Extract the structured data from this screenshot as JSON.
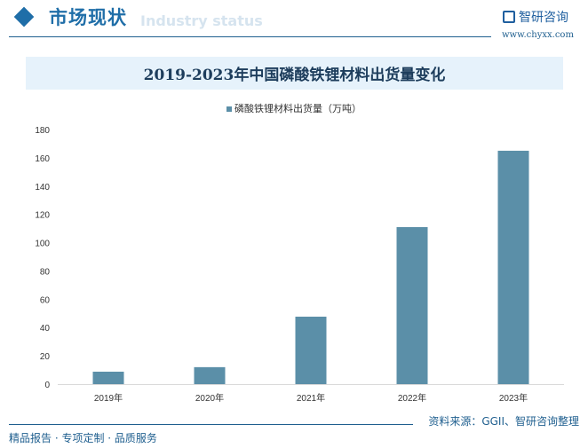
{
  "header": {
    "section_title": "市场现状",
    "section_subtitle": "Industry status",
    "logo_text": "智研咨询",
    "url": "www.chyxx.com"
  },
  "footer": {
    "source": "资料来源：GGII、智研咨询整理",
    "slogan": "精品报告 · 专项定制 · 品质服务"
  },
  "colors": {
    "bar": "#5b8fa8",
    "accent": "#1f6ea8"
  },
  "chart_data": {
    "type": "bar",
    "title": "2019-2023年中国磷酸铁锂材料出货量变化",
    "categories": [
      "2019年",
      "2020年",
      "2021年",
      "2022年",
      "2023年"
    ],
    "series": [
      {
        "name": "磷酸铁锂材料出货量（万吨）",
        "values": [
          8.8,
          12,
          47.7,
          111,
          165
        ]
      }
    ],
    "ylim": [
      0,
      180
    ],
    "yticks": [
      0,
      20,
      40,
      60,
      80,
      100,
      120,
      140,
      160,
      180
    ],
    "legend": "top-center",
    "grid": false
  }
}
